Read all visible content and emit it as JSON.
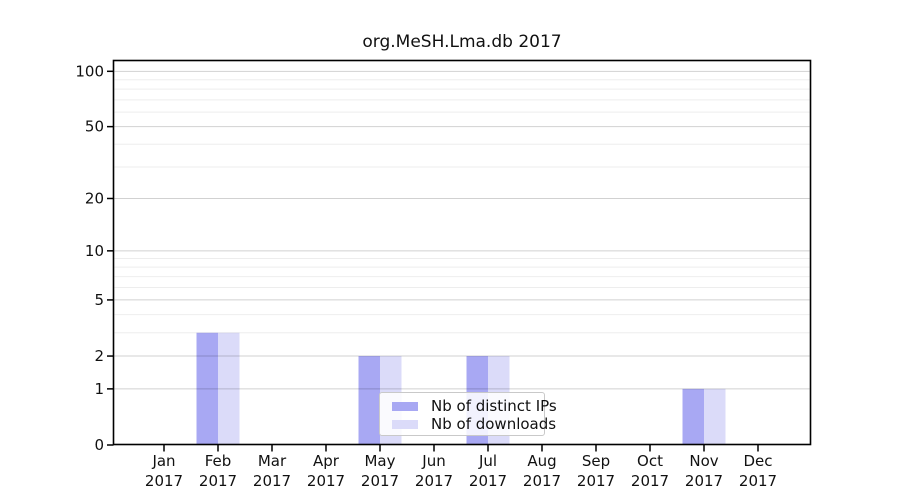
{
  "title": "org.MeSH.Lma.db 2017",
  "chart_data": {
    "type": "bar",
    "title": "org.MeSH.Lma.db 2017",
    "categories": [
      "Jan",
      "Feb",
      "Mar",
      "Apr",
      "May",
      "Jun",
      "Jul",
      "Aug",
      "Sep",
      "Oct",
      "Nov",
      "Dec"
    ],
    "category_year": "2017",
    "series": [
      {
        "name": "Nb of distinct IPs",
        "color": "#a8a8f3",
        "values": [
          0,
          3,
          0,
          0,
          2,
          0,
          2,
          0,
          0,
          0,
          1,
          0
        ]
      },
      {
        "name": "Nb of downloads",
        "color": "#dbdbf9",
        "values": [
          0,
          3,
          0,
          0,
          2,
          0,
          2,
          0,
          0,
          0,
          1,
          0
        ]
      }
    ],
    "y_scale": "log1p",
    "y_major_ticks": [
      0,
      1,
      2,
      5,
      10,
      20,
      50,
      100
    ],
    "y_minor_gridlines": [
      3,
      4,
      6,
      7,
      8,
      9,
      30,
      40,
      60,
      70,
      80,
      90
    ],
    "ylim": [
      0,
      115
    ],
    "grid": "horizontal",
    "legend_position": "lower-center"
  },
  "colors": {
    "spine": "#000000",
    "tick": "#000000",
    "text": "#111111",
    "major_grid": "rgba(0,0,0,0.18)",
    "minor_grid": "rgba(0,0,0,0.07)",
    "legend_border": "#c9c9c9",
    "background": "#ffffff"
  }
}
